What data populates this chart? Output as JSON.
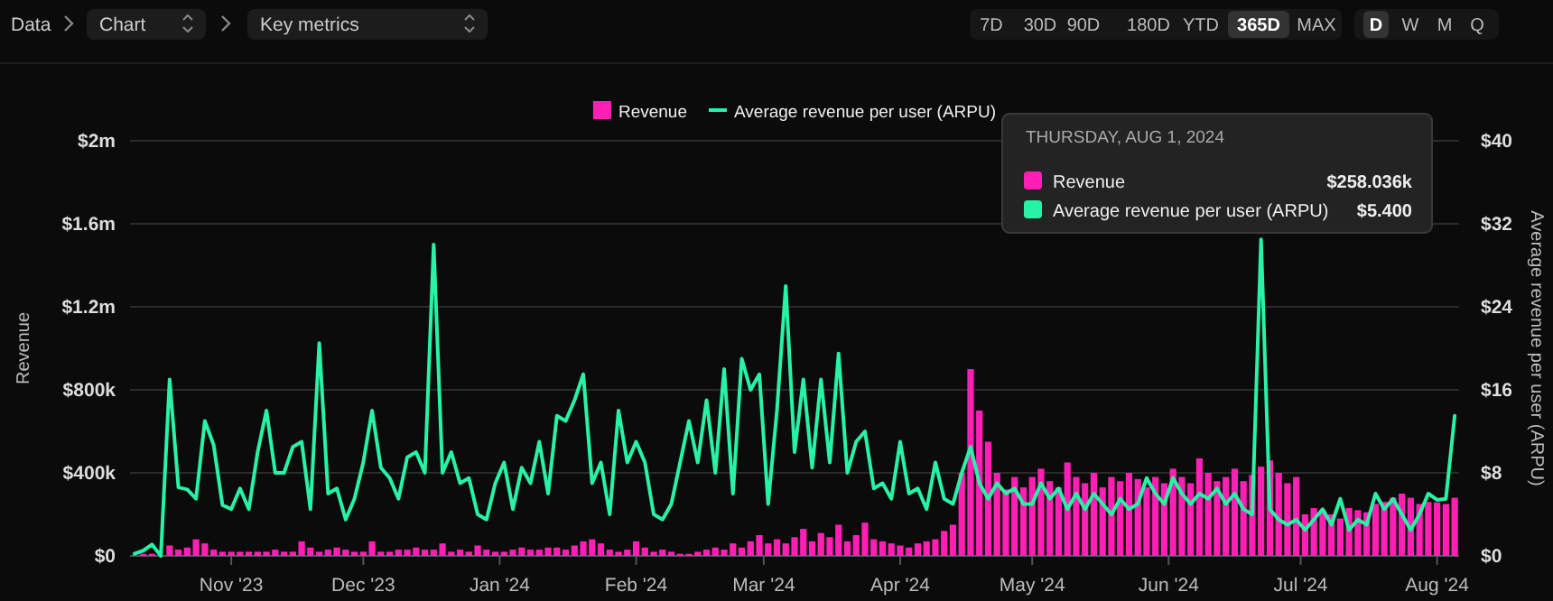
{
  "chart_data": {
    "type": "bar",
    "xlabel": null,
    "ylabel": "Revenue",
    "y2label": "Average revenue per user (ARPU)",
    "x": [
      "2023-10-10",
      "2023-10-12",
      "2023-10-14",
      "2023-10-16",
      "2023-10-18",
      "2023-10-20",
      "2023-10-22",
      "2023-10-24",
      "2023-10-26",
      "2023-10-28",
      "2023-10-30",
      "2023-11-01",
      "2023-11-03",
      "2023-11-05",
      "2023-11-07",
      "2023-11-09",
      "2023-11-11",
      "2023-11-13",
      "2023-11-15",
      "2023-11-17",
      "2023-11-19",
      "2023-11-21",
      "2023-11-23",
      "2023-11-25",
      "2023-11-27",
      "2023-11-29",
      "2023-12-01",
      "2023-12-03",
      "2023-12-05",
      "2023-12-07",
      "2023-12-09",
      "2023-12-11",
      "2023-12-13",
      "2023-12-15",
      "2023-12-17",
      "2023-12-19",
      "2023-12-21",
      "2023-12-23",
      "2023-12-25",
      "2023-12-27",
      "2023-12-29",
      "2023-12-31",
      "2024-01-02",
      "2024-01-04",
      "2024-01-06",
      "2024-01-08",
      "2024-01-10",
      "2024-01-12",
      "2024-01-14",
      "2024-01-16",
      "2024-01-18",
      "2024-01-20",
      "2024-01-22",
      "2024-01-24",
      "2024-01-26",
      "2024-01-28",
      "2024-01-30",
      "2024-02-01",
      "2024-02-03",
      "2024-02-05",
      "2024-02-07",
      "2024-02-09",
      "2024-02-11",
      "2024-02-13",
      "2024-02-15",
      "2024-02-17",
      "2024-02-19",
      "2024-02-21",
      "2024-02-23",
      "2024-02-25",
      "2024-02-27",
      "2024-02-29",
      "2024-03-02",
      "2024-03-04",
      "2024-03-06",
      "2024-03-08",
      "2024-03-10",
      "2024-03-12",
      "2024-03-14",
      "2024-03-16",
      "2024-03-18",
      "2024-03-20",
      "2024-03-22",
      "2024-03-24",
      "2024-03-26",
      "2024-03-28",
      "2024-03-30",
      "2024-04-01",
      "2024-04-03",
      "2024-04-05",
      "2024-04-07",
      "2024-04-09",
      "2024-04-11",
      "2024-04-13",
      "2024-04-15",
      "2024-04-17",
      "2024-04-19",
      "2024-04-21",
      "2024-04-23",
      "2024-04-25",
      "2024-04-27",
      "2024-04-29",
      "2024-05-01",
      "2024-05-03",
      "2024-05-05",
      "2024-05-07",
      "2024-05-09",
      "2024-05-11",
      "2024-05-13",
      "2024-05-15",
      "2024-05-17",
      "2024-05-19",
      "2024-05-21",
      "2024-05-23",
      "2024-05-25",
      "2024-05-27",
      "2024-05-29",
      "2024-05-31",
      "2024-06-02",
      "2024-06-04",
      "2024-06-06",
      "2024-06-08",
      "2024-06-10",
      "2024-06-12",
      "2024-06-14",
      "2024-06-16",
      "2024-06-18",
      "2024-06-20",
      "2024-06-22",
      "2024-06-24",
      "2024-06-26",
      "2024-06-28",
      "2024-06-30",
      "2024-07-02",
      "2024-07-04",
      "2024-07-06",
      "2024-07-08",
      "2024-07-10",
      "2024-07-12",
      "2024-07-14",
      "2024-07-16",
      "2024-07-18",
      "2024-07-20",
      "2024-07-22",
      "2024-07-24",
      "2024-07-26",
      "2024-07-28",
      "2024-07-30",
      "2024-08-01",
      "2024-08-03",
      "2024-08-05"
    ],
    "series": [
      {
        "name": "Revenue",
        "color": "#ff1fb4",
        "values": [
          0,
          10000,
          10000,
          0,
          50000,
          30000,
          40000,
          80000,
          60000,
          30000,
          20000,
          20000,
          20000,
          20000,
          20000,
          20000,
          30000,
          20000,
          20000,
          70000,
          40000,
          20000,
          30000,
          40000,
          30000,
          20000,
          20000,
          70000,
          20000,
          20000,
          30000,
          30000,
          40000,
          30000,
          30000,
          60000,
          20000,
          30000,
          20000,
          50000,
          30000,
          20000,
          20000,
          30000,
          40000,
          30000,
          30000,
          40000,
          40000,
          30000,
          50000,
          70000,
          80000,
          60000,
          30000,
          20000,
          30000,
          70000,
          40000,
          20000,
          30000,
          20000,
          10000,
          10000,
          20000,
          30000,
          40000,
          30000,
          60000,
          40000,
          70000,
          100000,
          60000,
          80000,
          60000,
          90000,
          130000,
          70000,
          110000,
          90000,
          150000,
          70000,
          100000,
          160000,
          80000,
          70000,
          60000,
          50000,
          40000,
          60000,
          70000,
          80000,
          120000,
          150000,
          400000,
          900000,
          700000,
          550000,
          400000,
          320000,
          380000,
          330000,
          380000,
          420000,
          360000,
          330000,
          450000,
          380000,
          350000,
          400000,
          330000,
          380000,
          360000,
          400000,
          370000,
          330000,
          380000,
          350000,
          420000,
          380000,
          350000,
          470000,
          400000,
          360000,
          380000,
          420000,
          360000,
          390000,
          430000,
          460000,
          400000,
          350000,
          380000,
          200000,
          230000,
          220000,
          200000,
          180000,
          230000,
          220000,
          210000,
          250000,
          260000,
          280000,
          300000,
          280000,
          250000,
          260000,
          258036,
          250000,
          280000
        ]
      },
      {
        "name": "Average revenue per user (ARPU)",
        "type": "line",
        "axis": "y2",
        "color": "#27f2a5",
        "values": [
          0.2,
          0.5,
          1.1,
          0,
          17,
          6.6,
          6.4,
          5.5,
          13,
          10.7,
          4.9,
          4.5,
          6.5,
          4.5,
          10,
          14,
          8,
          8,
          10.5,
          11,
          4.5,
          20.5,
          6,
          6.5,
          3.5,
          5.5,
          9,
          14,
          8.5,
          7.5,
          5.5,
          9.5,
          10,
          8,
          30,
          8,
          10,
          7,
          7.5,
          4,
          3.5,
          7,
          9,
          4.5,
          8.5,
          7,
          11,
          6,
          13.5,
          13,
          15,
          17.5,
          7,
          9,
          4,
          14,
          9,
          11,
          9,
          4,
          3.5,
          5,
          9,
          13,
          9,
          15,
          8,
          18,
          6,
          19,
          16,
          17.5,
          5,
          14,
          26,
          10,
          17,
          8.5,
          17,
          9,
          19.5,
          8,
          11,
          12,
          6.5,
          7,
          5.5,
          11,
          6,
          6.5,
          4.5,
          9,
          5.5,
          5,
          8,
          10.5,
          7,
          5.5,
          7,
          6,
          6.5,
          5,
          5,
          7,
          5.5,
          6.5,
          4.5,
          6,
          4.5,
          6,
          5,
          4,
          5.5,
          4.5,
          5,
          7.5,
          6,
          5,
          7.5,
          6,
          5,
          6,
          5.5,
          6.5,
          5,
          6,
          4.5,
          4,
          30.5,
          4.5,
          3.5,
          3,
          3.5,
          2.5,
          3.5,
          4.5,
          3,
          5.5,
          2.5,
          3.5,
          3,
          6,
          4.5,
          5.5,
          4,
          2.5,
          4,
          6,
          5.4,
          5.5,
          13.5
        ]
      }
    ],
    "xlim": [
      "2023-10-09",
      "2024-08-06"
    ],
    "xticks": [
      {
        "value": "2023-11-01",
        "label": "Nov '23"
      },
      {
        "value": "2023-12-01",
        "label": "Dec '23"
      },
      {
        "value": "2024-01-01",
        "label": "Jan '24"
      },
      {
        "value": "2024-02-01",
        "label": "Feb '24"
      },
      {
        "value": "2024-03-01",
        "label": "Mar '24"
      },
      {
        "value": "2024-04-01",
        "label": "Apr '24"
      },
      {
        "value": "2024-05-01",
        "label": "May '24"
      },
      {
        "value": "2024-06-01",
        "label": "Jun '24"
      },
      {
        "value": "2024-07-01",
        "label": "Jul '24"
      },
      {
        "value": "2024-08-01",
        "label": "Aug '24"
      }
    ],
    "ylim": [
      0,
      2000000
    ],
    "yticks": [
      {
        "value": 0,
        "label": "$0"
      },
      {
        "value": 400000,
        "label": "$400k"
      },
      {
        "value": 800000,
        "label": "$800k"
      },
      {
        "value": 1200000,
        "label": "$1.2m"
      },
      {
        "value": 1600000,
        "label": "$1.6m"
      },
      {
        "value": 2000000,
        "label": "$2m"
      }
    ],
    "y2lim": [
      0,
      40
    ],
    "y2ticks": [
      {
        "value": 0,
        "label": "$0"
      },
      {
        "value": 8,
        "label": "$8"
      },
      {
        "value": 16,
        "label": "$16"
      },
      {
        "value": 24,
        "label": "$24"
      },
      {
        "value": 32,
        "label": "$32"
      },
      {
        "value": 40,
        "label": "$40"
      }
    ],
    "grid": "y",
    "legend": "top",
    "annotations": [
      "THURSDAY, AUG 1, 2024",
      "$258.036k",
      "$5.400",
      "Data",
      "Chart",
      "Key metrics",
      "7D",
      "30D",
      "90D",
      "180D",
      "YTD",
      "365D",
      "MAX",
      "D",
      "W",
      "M",
      "Q"
    ]
  }
}
